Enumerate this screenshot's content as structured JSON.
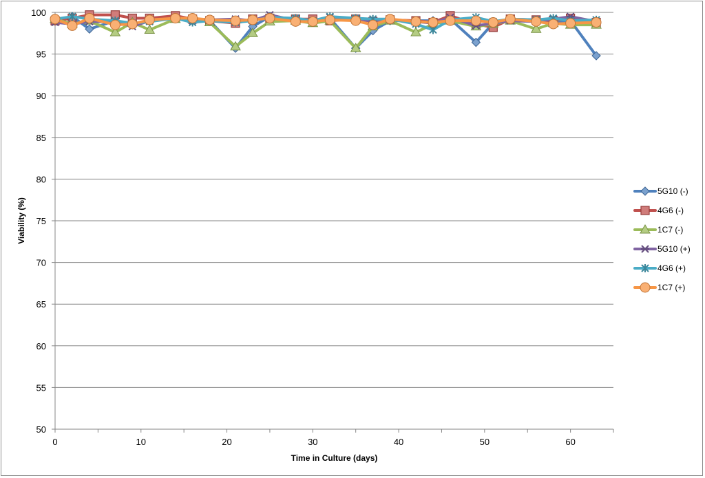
{
  "chart_data": {
    "type": "line",
    "title": "",
    "xlabel": "Time in Culture (days)",
    "ylabel": "Viability (%)",
    "xlim": [
      0,
      65
    ],
    "ylim": [
      50,
      100
    ],
    "xticks": [
      0,
      10,
      20,
      30,
      40,
      50,
      60
    ],
    "yticks": [
      50,
      55,
      60,
      65,
      70,
      75,
      80,
      85,
      90,
      95,
      100
    ],
    "grid": "horizontal",
    "legend_position": "right",
    "x": [
      0,
      2,
      4,
      7,
      9,
      11,
      14,
      16,
      18,
      21,
      23,
      25,
      28,
      30,
      32,
      35,
      37,
      39,
      42,
      44,
      46,
      49,
      51,
      53,
      56,
      58,
      60,
      63
    ],
    "series": [
      {
        "name": "5G10 (-)",
        "color": "#4f81bd",
        "marker": "diamond",
        "values": [
          99.0,
          99.5,
          98.0,
          99.0,
          98.5,
          99.0,
          99.5,
          99.0,
          99.0,
          95.7,
          98.3,
          99.5,
          99.2,
          99.0,
          99.3,
          95.7,
          97.8,
          99.0,
          99.0,
          99.0,
          99.2,
          96.4,
          98.7,
          99.2,
          99.0,
          98.7,
          99.0,
          94.8
        ]
      },
      {
        "name": "4G6 (-)",
        "color": "#c0504d",
        "marker": "square",
        "values": [
          99.0,
          99.3,
          99.7,
          99.7,
          99.3,
          99.3,
          99.6,
          99.2,
          99.0,
          98.7,
          99.2,
          99.3,
          99.2,
          99.2,
          99.0,
          99.2,
          98.9,
          99.1,
          99.0,
          98.8,
          99.6,
          98.6,
          98.2,
          99.2,
          99.1,
          99.0,
          99.3,
          98.8
        ]
      },
      {
        "name": "1C7 (-)",
        "color": "#9bbb59",
        "marker": "triangle",
        "values": [
          99.2,
          98.6,
          99.0,
          97.6,
          98.8,
          97.9,
          99.2,
          99.2,
          98.8,
          95.9,
          97.5,
          98.9,
          99.0,
          98.7,
          99.0,
          95.7,
          98.3,
          99.0,
          97.6,
          98.6,
          99.0,
          98.3,
          98.6,
          99.0,
          98.0,
          98.7,
          98.5,
          98.5
        ]
      },
      {
        "name": "5G10 (+)",
        "color": "#8064a2",
        "marker": "star",
        "values": [
          98.8,
          98.6,
          98.9,
          98.9,
          98.3,
          99.0,
          99.3,
          99.0,
          99.1,
          99.2,
          99.0,
          99.7,
          99.0,
          98.9,
          99.4,
          99.1,
          99.0,
          99.1,
          98.9,
          98.7,
          99.4,
          98.4,
          98.7,
          99.0,
          98.9,
          99.2,
          99.5,
          98.9
        ]
      },
      {
        "name": "4G6 (+)",
        "color": "#4bacc6",
        "marker": "x-star",
        "values": [
          99.2,
          99.5,
          99.2,
          99.0,
          98.7,
          98.9,
          99.3,
          98.8,
          99.0,
          98.8,
          99.0,
          99.4,
          99.3,
          99.0,
          99.5,
          99.3,
          99.2,
          99.2,
          98.6,
          97.9,
          99.1,
          99.4,
          98.9,
          99.2,
          99.1,
          99.3,
          99.0,
          99.1
        ]
      },
      {
        "name": "1C7 (+)",
        "color": "#f79646",
        "marker": "circle",
        "values": [
          99.2,
          98.4,
          99.3,
          98.5,
          98.6,
          99.1,
          99.3,
          99.3,
          99.1,
          99.0,
          99.1,
          99.3,
          98.9,
          98.9,
          99.1,
          99.0,
          98.5,
          99.2,
          98.9,
          98.8,
          99.0,
          99.0,
          98.8,
          99.2,
          98.9,
          98.6,
          98.7,
          98.8
        ]
      }
    ]
  }
}
